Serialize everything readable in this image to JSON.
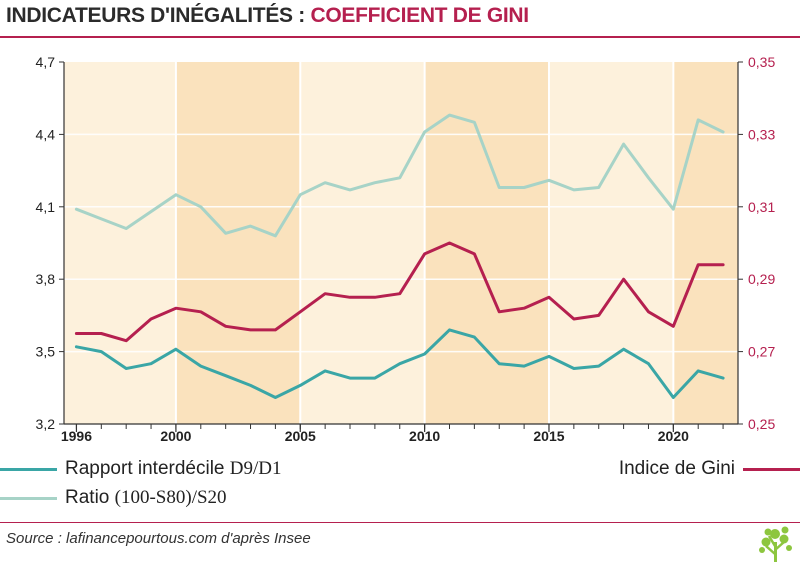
{
  "header": {
    "title_part1": "INDICATEURS D'INÉGALITÉS : ",
    "title_part2": "COEFFICIENT DE GINI"
  },
  "colors": {
    "interdecile": "#3aa6a6",
    "ratio": "#a7d3c7",
    "gini": "#b5204f",
    "band_light": "#fdf1dc",
    "band_dark": "#fae2bd",
    "accent": "#b5204f"
  },
  "chart_data": {
    "type": "line",
    "x_ticks": [
      "1996",
      "2000",
      "2005",
      "2010",
      "2015",
      "2020"
    ],
    "x_range": [
      1995.5,
      2022.6
    ],
    "left_axis": {
      "ticks": [
        "3,2",
        "3,5",
        "3,8",
        "4,1",
        "4,4",
        "4,7"
      ],
      "range": [
        3.2,
        4.7
      ]
    },
    "right_axis": {
      "ticks": [
        "0,25",
        "0,27",
        "0,29",
        "0,31",
        "0,33",
        "0,35"
      ],
      "range": [
        0.25,
        0.35
      ]
    },
    "bands": [
      {
        "from": 1995.5,
        "to": 2000,
        "shade": "light"
      },
      {
        "from": 2000,
        "to": 2005,
        "shade": "dark"
      },
      {
        "from": 2005,
        "to": 2010,
        "shade": "light"
      },
      {
        "from": 2010,
        "to": 2015,
        "shade": "dark"
      },
      {
        "from": 2015,
        "to": 2020,
        "shade": "light"
      },
      {
        "from": 2020,
        "to": 2022.6,
        "shade": "dark"
      }
    ],
    "x": [
      1996,
      1997,
      1998,
      1999,
      2000,
      2001,
      2002,
      2003,
      2004,
      2005,
      2006,
      2007,
      2008,
      2009,
      2010,
      2011,
      2012,
      2013,
      2014,
      2015,
      2016,
      2017,
      2018,
      2019,
      2020,
      2021,
      2022
    ],
    "series": [
      {
        "name": "Rapport interdécile D9/D1",
        "axis": "left",
        "color_key": "interdecile",
        "values": [
          3.52,
          3.5,
          3.43,
          3.45,
          3.51,
          3.44,
          3.4,
          3.36,
          3.31,
          3.36,
          3.42,
          3.39,
          3.39,
          3.45,
          3.49,
          3.59,
          3.56,
          3.45,
          3.44,
          3.48,
          3.43,
          3.44,
          3.51,
          3.45,
          3.31,
          3.42,
          3.39
        ]
      },
      {
        "name": "Ratio (100-S80)/S20",
        "axis": "left",
        "color_key": "ratio",
        "values": [
          4.09,
          4.05,
          4.01,
          4.08,
          4.15,
          4.1,
          3.99,
          4.02,
          3.98,
          4.15,
          4.2,
          4.17,
          4.2,
          4.22,
          4.41,
          4.48,
          4.45,
          4.18,
          4.18,
          4.21,
          4.17,
          4.18,
          4.36,
          4.22,
          4.09,
          4.46,
          4.41
        ]
      },
      {
        "name": "Indice de Gini",
        "axis": "right",
        "color_key": "gini",
        "values": [
          0.275,
          0.275,
          0.273,
          0.279,
          0.282,
          0.281,
          0.277,
          0.276,
          0.276,
          0.281,
          0.286,
          0.285,
          0.285,
          0.286,
          0.297,
          0.3,
          0.297,
          0.281,
          0.282,
          0.285,
          0.279,
          0.28,
          0.29,
          0.281,
          0.277,
          0.294,
          0.294
        ]
      }
    ]
  },
  "legend": {
    "interdecile_text": "Rapport interdécile ",
    "interdecile_code": "D9/D1",
    "ratio_text": "Ratio ",
    "ratio_code": "(100-S80)/S20",
    "gini_label": "Indice de Gini"
  },
  "footer": {
    "source": "Source : lafinancepourtous.com d'après Insee"
  }
}
